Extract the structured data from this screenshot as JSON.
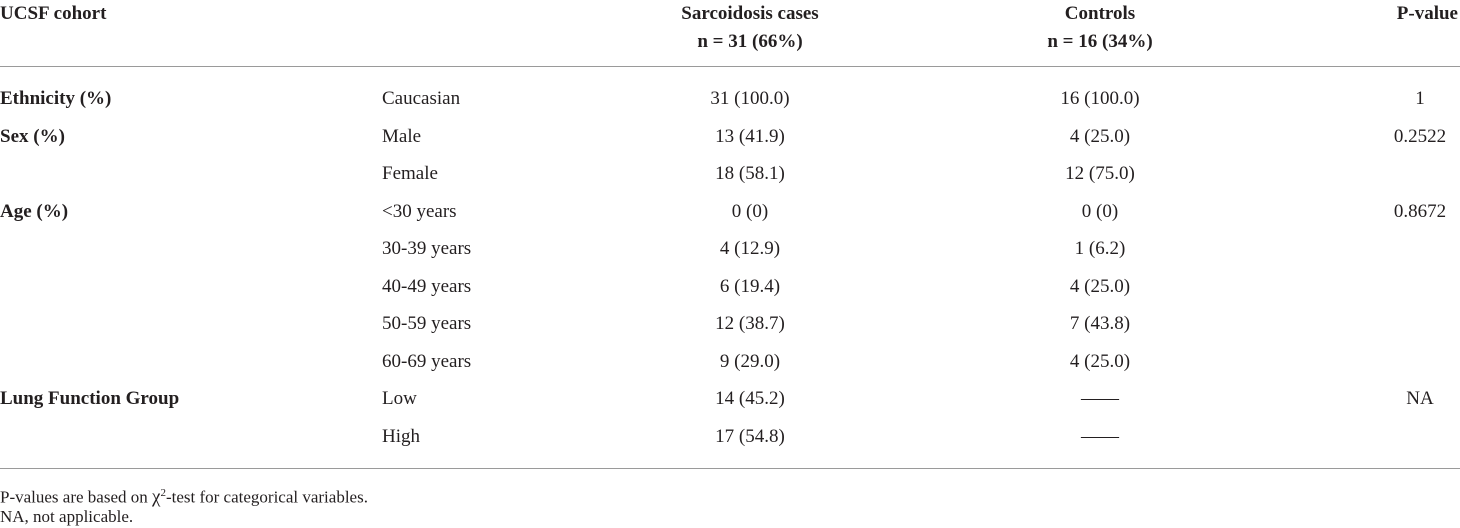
{
  "table": {
    "header": [
      "UCSF cohort",
      null,
      [
        "Sarcoidosis cases",
        "n = 31 (66%)"
      ],
      [
        "Controls",
        "n = 16 (34%)"
      ],
      "P-value"
    ],
    "rows": [
      [
        "Ethnicity (%)",
        "Caucasian",
        "31 (100.0)",
        "16 (100.0)",
        "1"
      ],
      [
        "Sex (%)",
        "Male",
        "13 (41.9)",
        "4 (25.0)",
        "0.2522"
      ],
      [
        null,
        "Female",
        "18 (58.1)",
        "12 (75.0)",
        null
      ],
      [
        "Age (%)",
        "<30 years",
        "0 (0)",
        "0 (0)",
        "0.8672"
      ],
      [
        null,
        "30-39 years",
        "4 (12.9)",
        "1 (6.2)",
        null
      ],
      [
        null,
        "40-49 years",
        "6 (19.4)",
        "4 (25.0)",
        null
      ],
      [
        null,
        "50-59 years",
        "12 (38.7)",
        "7 (43.8)",
        null
      ],
      [
        null,
        "60-69 years",
        "9 (29.0)",
        "4 (25.0)",
        null
      ],
      [
        "Lung Function Group",
        "Low",
        "14 (45.2)",
        "——",
        "NA"
      ],
      [
        null,
        "High",
        "17 (54.8)",
        "——",
        null
      ]
    ],
    "footnotes": [
      {
        "before": "P-values are based on ",
        "symbol": "χ",
        "sup": "2",
        "after": "-test for categorical variables."
      },
      {
        "text": "NA, not applicable."
      }
    ]
  }
}
